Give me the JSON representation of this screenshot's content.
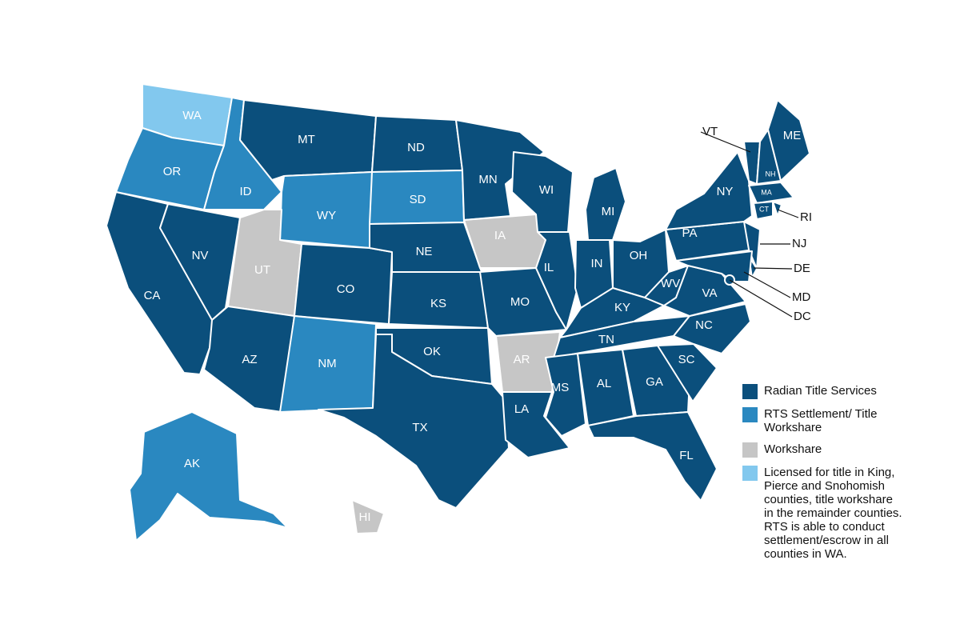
{
  "states": [
    {
      "label": "WA",
      "color": "#82c8ee"
    },
    {
      "label": "OR",
      "color": "#2a88c0"
    },
    {
      "label": "CA",
      "color": "#0b4f7c"
    },
    {
      "label": "NV",
      "color": "#0b4f7c"
    },
    {
      "label": "ID",
      "color": "#2a88c0"
    },
    {
      "label": "MT",
      "color": "#0b4f7c"
    },
    {
      "label": "WY",
      "color": "#2a88c0"
    },
    {
      "label": "UT",
      "color": "#c6c6c6"
    },
    {
      "label": "CO",
      "color": "#0b4f7c"
    },
    {
      "label": "AZ",
      "color": "#0b4f7c"
    },
    {
      "label": "NM",
      "color": "#2a88c0"
    },
    {
      "label": "ND",
      "color": "#0b4f7c"
    },
    {
      "label": "SD",
      "color": "#2a88c0"
    },
    {
      "label": "NE",
      "color": "#0b4f7c"
    },
    {
      "label": "KS",
      "color": "#0b4f7c"
    },
    {
      "label": "OK",
      "color": "#0b4f7c"
    },
    {
      "label": "TX",
      "color": "#0b4f7c"
    },
    {
      "label": "MN",
      "color": "#0b4f7c"
    },
    {
      "label": "IA",
      "color": "#c6c6c6"
    },
    {
      "label": "MO",
      "color": "#0b4f7c"
    },
    {
      "label": "AR",
      "color": "#c6c6c6"
    },
    {
      "label": "LA",
      "color": "#0b4f7c"
    },
    {
      "label": "WI",
      "color": "#0b4f7c"
    },
    {
      "label": "IL",
      "color": "#0b4f7c"
    },
    {
      "label": "MI",
      "color": "#0b4f7c"
    },
    {
      "label": "IN",
      "color": "#0b4f7c"
    },
    {
      "label": "OH",
      "color": "#0b4f7c"
    },
    {
      "label": "KY",
      "color": "#0b4f7c"
    },
    {
      "label": "TN",
      "color": "#0b4f7c"
    },
    {
      "label": "MS",
      "color": "#0b4f7c"
    },
    {
      "label": "AL",
      "color": "#0b4f7c"
    },
    {
      "label": "GA",
      "color": "#0b4f7c"
    },
    {
      "label": "FL",
      "color": "#0b4f7c"
    },
    {
      "label": "SC",
      "color": "#0b4f7c"
    },
    {
      "label": "NC",
      "color": "#0b4f7c"
    },
    {
      "label": "VA",
      "color": "#0b4f7c"
    },
    {
      "label": "WV",
      "color": "#0b4f7c"
    },
    {
      "label": "PA",
      "color": "#0b4f7c"
    },
    {
      "label": "NY",
      "color": "#0b4f7c"
    },
    {
      "label": "NJ",
      "color": "#0b4f7c"
    },
    {
      "label": "DE",
      "color": "#0b4f7c"
    },
    {
      "label": "MD",
      "color": "#0b4f7c"
    },
    {
      "label": "VT",
      "color": "#0b4f7c"
    },
    {
      "label": "NH",
      "color": "#0b4f7c"
    },
    {
      "label": "ME",
      "color": "#0b4f7c"
    },
    {
      "label": "MA",
      "color": "#0b4f7c"
    },
    {
      "label": "CT",
      "color": "#0b4f7c"
    },
    {
      "label": "RI",
      "color": "#0b4f7c"
    },
    {
      "label": "AK",
      "color": "#2a88c0"
    },
    {
      "label": "HI",
      "color": "#c6c6c6"
    },
    {
      "label": "DC",
      "color": "#0b4f7c"
    }
  ],
  "legend": [
    {
      "label": "Radian Title Services",
      "color": "#0b4f7c"
    },
    {
      "label": "RTS Settlement/ Title Workshare",
      "color": "#2a88c0"
    },
    {
      "label": "Workshare",
      "color": "#c6c6c6"
    },
    {
      "label": "Licensed for title in King, Pierce and Snohomish counties, title workshare in the remainder counties. RTS is able to conduct settlement/escrow in all counties in WA.",
      "color": "#82c8ee"
    }
  ]
}
